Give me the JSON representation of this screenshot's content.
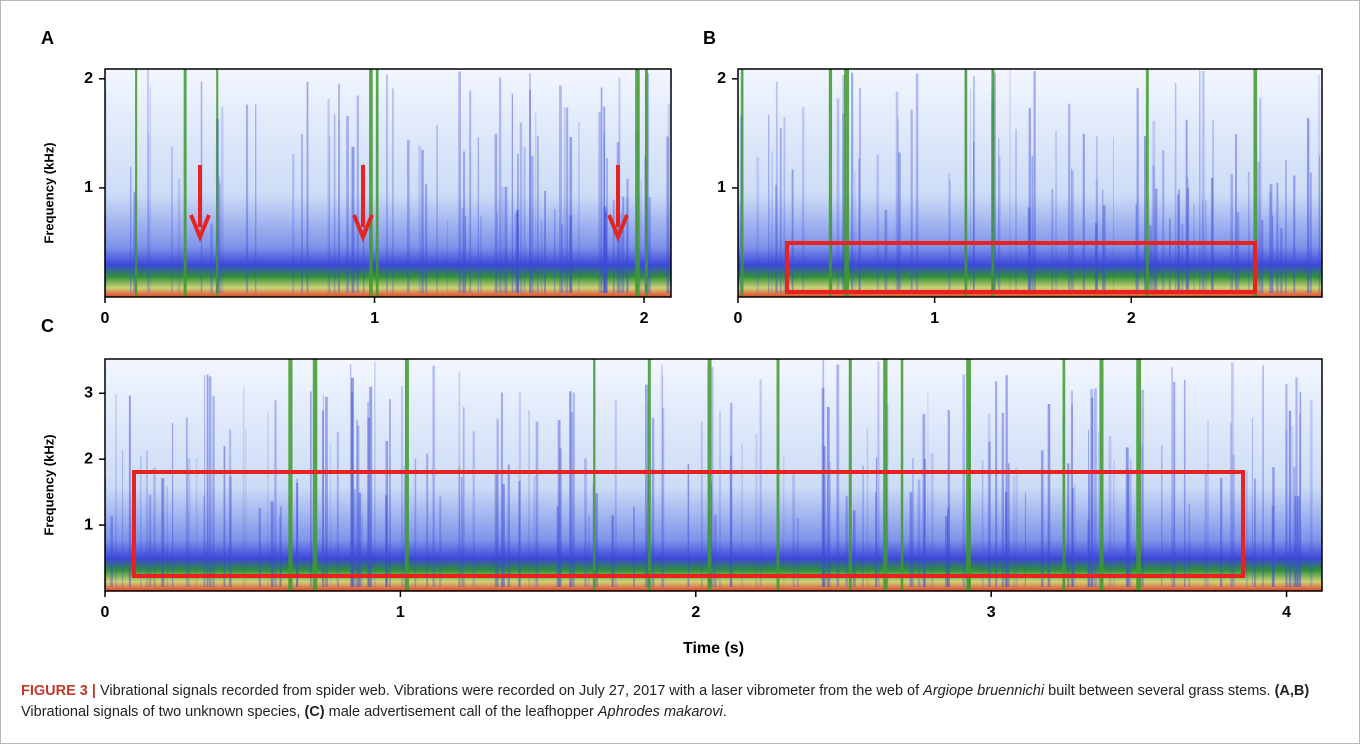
{
  "chart_data": [
    {
      "type": "spectrogram",
      "panel": "A",
      "ylabel": "Frequency (kHz)",
      "xlim": [
        0,
        2.1
      ],
      "ylim": [
        0,
        2.09
      ],
      "xticks": [
        0,
        1,
        2
      ],
      "yticks": [
        1,
        2
      ]
    },
    {
      "type": "spectrogram",
      "panel": "B",
      "xlim": [
        0,
        2.97
      ],
      "ylim": [
        0,
        2.09
      ],
      "xticks": [
        0,
        1,
        2
      ],
      "yticks": [
        1,
        2
      ]
    },
    {
      "type": "spectrogram",
      "panel": "C",
      "ylabel": "Frequency (kHz)",
      "xlabel": "Time (s)",
      "xlim": [
        0,
        4.12
      ],
      "ylim": [
        0,
        3.52
      ],
      "xticks": [
        0,
        1,
        2,
        3,
        4
      ],
      "yticks": [
        1,
        2,
        3
      ]
    }
  ],
  "caption": {
    "parts": [
      "FIGURE 3 |",
      "Vibrational signals recorded from spider web. Vibrations were recorded on July 27, 2017 with a laser vibrometer from the web of",
      "Argiope bruennichi",
      "built between several grass stems.",
      "(A,B)",
      "Vibrational signals of two unknown species,",
      "(C)",
      "male advertisement call of the leafhopper",
      "Aphrodes makarovi",
      "."
    ]
  }
}
